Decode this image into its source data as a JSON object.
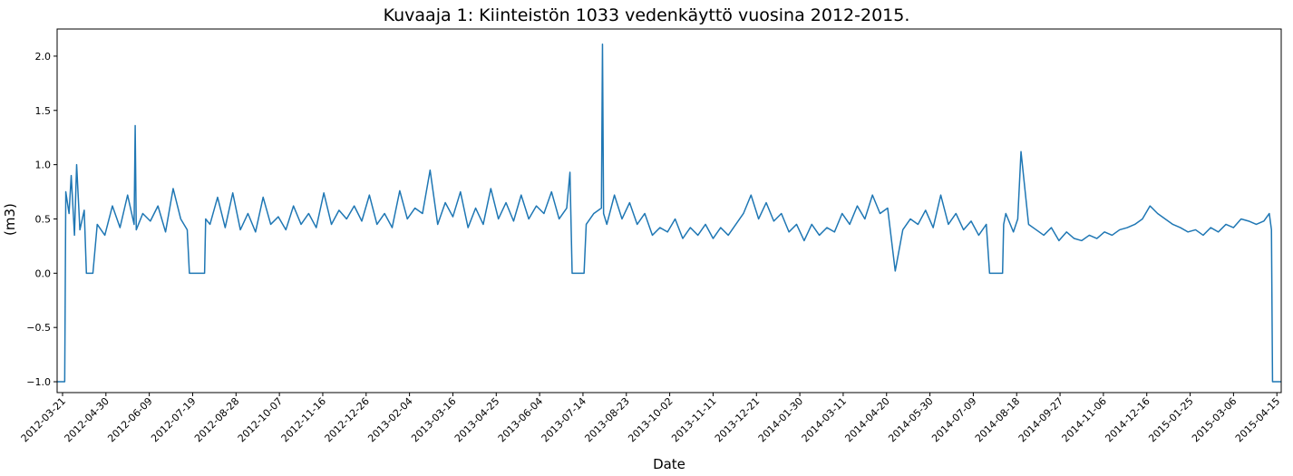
{
  "chart_data": {
    "type": "line",
    "title": "Kuvaaja 1: Kiinteistön 1033 vedenkäyttö vuosina 2012-2015.",
    "xlabel": "Date",
    "ylabel": "(m3)",
    "xlim": [
      "2012-03-16",
      "2015-04-19"
    ],
    "ylim": [
      -1.1,
      2.25
    ],
    "grid": false,
    "legend": "none",
    "color": "#1f77b4",
    "xticks": [
      "2012-03-21",
      "2012-04-30",
      "2012-06-09",
      "2012-07-19",
      "2012-08-28",
      "2012-10-07",
      "2012-11-16",
      "2012-12-26",
      "2013-02-04",
      "2013-03-16",
      "2013-04-25",
      "2013-06-04",
      "2013-07-14",
      "2013-08-23",
      "2013-10-02",
      "2013-11-11",
      "2013-12-21",
      "2014-01-30",
      "2014-03-11",
      "2014-04-20",
      "2014-05-30",
      "2014-07-09",
      "2014-08-18",
      "2014-09-27",
      "2014-11-06",
      "2014-12-16",
      "2015-01-25",
      "2015-03-06",
      "2015-04-15"
    ],
    "yticks": [
      "−1.0",
      "−0.5",
      "0.0",
      "0.5",
      "1.0",
      "1.5",
      "2.0"
    ],
    "series": [
      {
        "x": [
          "2012-03-16",
          "2012-03-23",
          "2012-03-24",
          "2012-03-27",
          "2012-03-29",
          "2012-04-01",
          "2012-04-03",
          "2012-04-06",
          "2012-04-10",
          "2012-04-12",
          "2012-04-18",
          "2012-04-22",
          "2012-04-29",
          "2012-05-06",
          "2012-05-13",
          "2012-05-20",
          "2012-05-26",
          "2012-05-27",
          "2012-05-28",
          "2012-06-03",
          "2012-06-10",
          "2012-06-17",
          "2012-06-24",
          "2012-07-01",
          "2012-07-08",
          "2012-07-14",
          "2012-07-16",
          "2012-07-17",
          "2012-07-30",
          "2012-07-31",
          "2012-08-04",
          "2012-08-11",
          "2012-08-18",
          "2012-08-25",
          "2012-09-01",
          "2012-09-08",
          "2012-09-15",
          "2012-09-22",
          "2012-09-29",
          "2012-10-06",
          "2012-10-13",
          "2012-10-20",
          "2012-10-27",
          "2012-11-03",
          "2012-11-10",
          "2012-11-17",
          "2012-11-24",
          "2012-12-01",
          "2012-12-08",
          "2012-12-15",
          "2012-12-22",
          "2012-12-29",
          "2013-01-05",
          "2013-01-12",
          "2013-01-19",
          "2013-01-26",
          "2013-02-02",
          "2013-02-09",
          "2013-02-16",
          "2013-02-23",
          "2013-03-02",
          "2013-03-09",
          "2013-03-16",
          "2013-03-23",
          "2013-03-30",
          "2013-04-06",
          "2013-04-13",
          "2013-04-20",
          "2013-04-27",
          "2013-05-04",
          "2013-05-11",
          "2013-05-18",
          "2013-05-25",
          "2013-06-01",
          "2013-06-08",
          "2013-06-15",
          "2013-06-22",
          "2013-06-29",
          "2013-07-02",
          "2013-07-04",
          "2013-07-15",
          "2013-07-17",
          "2013-07-24",
          "2013-07-31",
          "2013-08-01",
          "2013-08-02",
          "2013-08-05",
          "2013-08-12",
          "2013-08-19",
          "2013-08-26",
          "2013-09-02",
          "2013-09-09",
          "2013-09-16",
          "2013-09-23",
          "2013-09-30",
          "2013-10-07",
          "2013-10-14",
          "2013-10-21",
          "2013-10-28",
          "2013-11-04",
          "2013-11-11",
          "2013-11-18",
          "2013-11-25",
          "2013-12-02",
          "2013-12-09",
          "2013-12-16",
          "2013-12-23",
          "2013-12-30",
          "2014-01-06",
          "2014-01-13",
          "2014-01-20",
          "2014-01-27",
          "2014-02-03",
          "2014-02-10",
          "2014-02-17",
          "2014-02-24",
          "2014-03-03",
          "2014-03-10",
          "2014-03-17",
          "2014-03-24",
          "2014-03-31",
          "2014-04-07",
          "2014-04-14",
          "2014-04-21",
          "2014-04-28",
          "2014-05-05",
          "2014-05-12",
          "2014-05-19",
          "2014-05-26",
          "2014-06-02",
          "2014-06-09",
          "2014-06-16",
          "2014-06-23",
          "2014-06-30",
          "2014-07-07",
          "2014-07-14",
          "2014-07-21",
          "2014-07-24",
          "2014-07-26",
          "2014-08-05",
          "2014-08-06",
          "2014-08-08",
          "2014-08-15",
          "2014-08-19",
          "2014-08-22",
          "2014-08-29",
          "2014-09-05",
          "2014-09-12",
          "2014-09-19",
          "2014-09-26",
          "2014-10-03",
          "2014-10-10",
          "2014-10-17",
          "2014-10-24",
          "2014-10-31",
          "2014-11-07",
          "2014-11-14",
          "2014-11-21",
          "2014-11-28",
          "2014-12-05",
          "2014-12-12",
          "2014-12-19",
          "2014-12-26",
          "2015-01-02",
          "2015-01-09",
          "2015-01-16",
          "2015-01-23",
          "2015-01-30",
          "2015-02-06",
          "2015-02-13",
          "2015-02-20",
          "2015-02-27",
          "2015-03-06",
          "2015-03-13",
          "2015-03-20",
          "2015-03-27",
          "2015-04-03",
          "2015-04-08",
          "2015-04-10",
          "2015-04-11",
          "2015-04-19"
        ],
        "y": [
          -1.0,
          -1.0,
          0.75,
          0.55,
          0.9,
          0.35,
          1.0,
          0.4,
          0.58,
          0.0,
          0.0,
          0.45,
          0.35,
          0.62,
          0.42,
          0.72,
          0.45,
          1.36,
          0.4,
          0.55,
          0.48,
          0.62,
          0.38,
          0.78,
          0.5,
          0.4,
          0.0,
          0.0,
          0.0,
          0.5,
          0.45,
          0.7,
          0.42,
          0.74,
          0.4,
          0.55,
          0.38,
          0.7,
          0.45,
          0.52,
          0.4,
          0.62,
          0.45,
          0.55,
          0.42,
          0.74,
          0.45,
          0.58,
          0.5,
          0.62,
          0.48,
          0.72,
          0.45,
          0.55,
          0.42,
          0.76,
          0.5,
          0.6,
          0.55,
          0.95,
          0.45,
          0.65,
          0.52,
          0.75,
          0.42,
          0.6,
          0.45,
          0.78,
          0.5,
          0.65,
          0.48,
          0.72,
          0.5,
          0.62,
          0.55,
          0.75,
          0.5,
          0.6,
          0.93,
          0.0,
          0.0,
          0.45,
          0.55,
          0.6,
          2.11,
          0.55,
          0.45,
          0.72,
          0.5,
          0.65,
          0.45,
          0.55,
          0.35,
          0.42,
          0.38,
          0.5,
          0.32,
          0.42,
          0.35,
          0.45,
          0.32,
          0.42,
          0.35,
          0.45,
          0.55,
          0.72,
          0.5,
          0.65,
          0.48,
          0.55,
          0.38,
          0.45,
          0.3,
          0.45,
          0.35,
          0.42,
          0.38,
          0.55,
          0.45,
          0.62,
          0.5,
          0.72,
          0.55,
          0.6,
          0.02,
          0.4,
          0.5,
          0.45,
          0.58,
          0.42,
          0.72,
          0.45,
          0.55,
          0.4,
          0.48,
          0.35,
          0.45,
          0.0,
          0.0,
          0.0,
          0.45,
          0.55,
          0.38,
          0.5,
          1.12,
          0.45,
          0.4,
          0.35,
          0.42,
          0.3,
          0.38,
          0.32,
          0.3,
          0.35,
          0.32,
          0.38,
          0.35,
          0.4,
          0.42,
          0.45,
          0.5,
          0.62,
          0.55,
          0.5,
          0.45,
          0.42,
          0.38,
          0.4,
          0.35,
          0.42,
          0.38,
          0.45,
          0.42,
          0.5,
          0.48,
          0.45,
          0.48,
          0.55,
          0.4,
          -1.0,
          -1.0
        ]
      }
    ]
  }
}
